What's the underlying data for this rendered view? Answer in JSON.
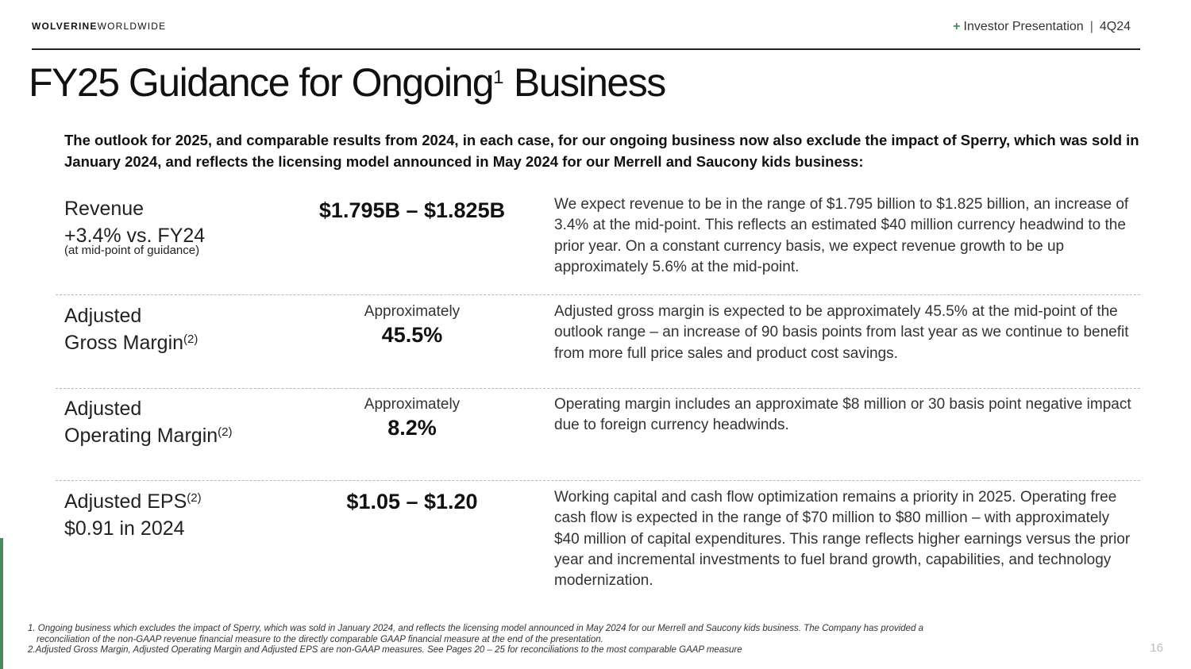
{
  "header": {
    "brand_bold": "WOLVERINE",
    "brand_light": "WORLDWIDE",
    "plus": "+",
    "section": "Investor Presentation",
    "separator": "|",
    "period": "4Q24"
  },
  "title": {
    "text": "FY25 Guidance for Ongoing",
    "superscript": "1",
    "tail": " Business"
  },
  "intro": "The outlook for 2025, and comparable results from 2024, in each case, for our ongoing business now also exclude the impact of Sperry, which was sold in January 2024, and reflects the licensing model announced in May 2024 for our Merrell and Saucony kids business:",
  "rows": [
    {
      "metric_line1": "Revenue",
      "metric_line2": "+3.4% vs. FY24",
      "metric_note": "(at mid-point of guidance)",
      "value": "$1.795B – $1.825B",
      "description": "We expect revenue to be in the range of $1.795 billion to $1.825 billion, an increase of 3.4% at the mid-point. This reflects an estimated $40 million currency headwind to the prior year. On a constant currency basis, we expect revenue growth to be up approximately 5.6% at the mid-point."
    },
    {
      "metric_line1": "Adjusted",
      "metric_line2": "Gross Margin",
      "metric_sup": "(2)",
      "value_prefix": "Approximately",
      "value": "45.5%",
      "description": "Adjusted gross margin is expected to be approximately 45.5% at the mid-point of the outlook range – an increase of 90 basis points from last year as we continue to benefit from more full price sales and product cost savings."
    },
    {
      "metric_line1": "Adjusted",
      "metric_line2": "Operating Margin",
      "metric_sup": "(2)",
      "value_prefix": "Approximately",
      "value": "8.2%",
      "description": "Operating margin includes an approximate $8 million or 30 basis point negative impact due to foreign currency headwinds."
    },
    {
      "metric_line1": "Adjusted EPS",
      "metric_sup": "(2)",
      "metric_line2": "$0.91 in 2024",
      "value": "$1.05 – $1.20",
      "description": "Working capital and cash flow optimization remains a priority in 2025. Operating free cash flow is expected in the range of $70 million to $80 million – with approximately $40 million of capital expenditures. This range reflects higher earnings versus the prior year and incremental investments to fuel brand growth, capabilities, and technology modernization."
    }
  ],
  "footnotes": {
    "note1_line1": "1. Ongoing business which excludes the impact of Sperry, which was sold in January 2024, and reflects the licensing model announced in May 2024 for our Merrell and Saucony kids business. The Company has provided a",
    "note1_line2": "reconciliation of the non-GAAP revenue financial measure to the directly comparable GAAP financial measure at the end of the presentation.",
    "note2": "2.Adjusted Gross Margin, Adjusted Operating Margin and Adjusted EPS are non-GAAP measures. See Pages 20 – 25 for reconciliations to the most comparable GAAP measure"
  },
  "page_number": "16",
  "colors": {
    "accent": "#4a8a5b",
    "text": "#111111",
    "divider": "#b9b9b9"
  }
}
